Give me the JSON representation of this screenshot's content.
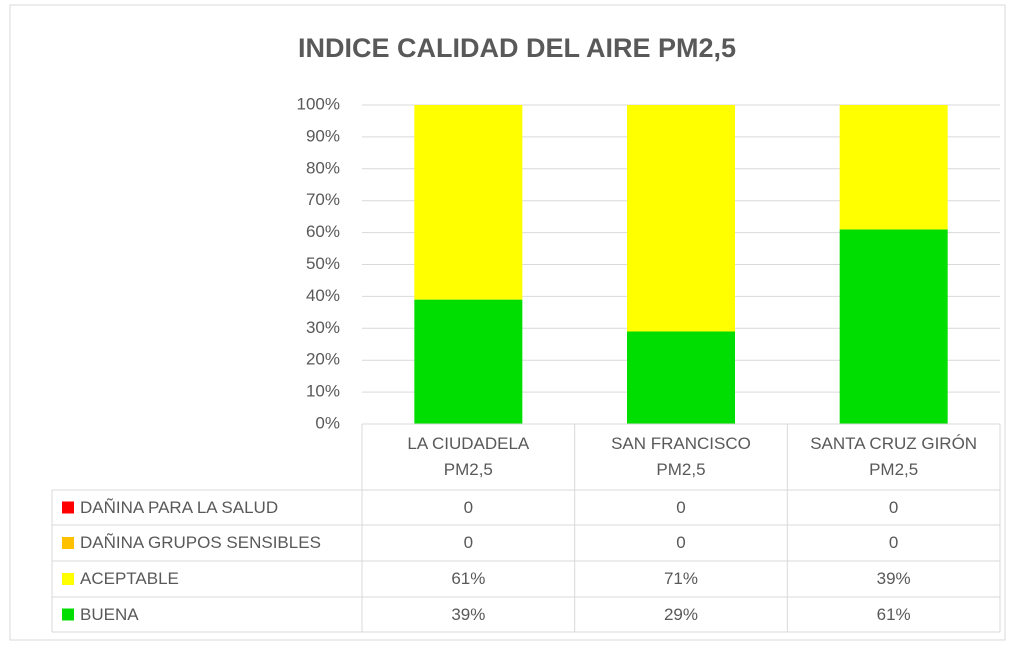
{
  "chart_data": {
    "type": "stacked_bar_100",
    "title": "INDICE CALIDAD DEL AIRE PM2,5",
    "categories": [
      "LA CIUDADELA PM2,5",
      "SAN FRANCISCO PM2,5",
      "SANTA CRUZ GIRÓN PM2,5"
    ],
    "series": [
      {
        "name": "DAÑINA PARA LA SALUD",
        "color": "#ff0000",
        "values": [
          0,
          0,
          0
        ]
      },
      {
        "name": "DAÑINA GRUPOS SENSIBLES",
        "color": "#ffc000",
        "values": [
          0,
          0,
          0
        ]
      },
      {
        "name": "ACEPTABLE",
        "color": "#ffff00",
        "values": [
          61,
          71,
          39
        ],
        "value_labels": [
          "61%",
          "71%",
          "39%"
        ]
      },
      {
        "name": "BUENA",
        "color": "#00dd00",
        "values": [
          39,
          29,
          61
        ],
        "value_labels": [
          "39%",
          "29%",
          "61%"
        ]
      }
    ],
    "ylim": [
      0,
      100
    ],
    "yticks": [
      {
        "value": 0,
        "label": "0%"
      },
      {
        "value": 10,
        "label": "10%"
      },
      {
        "value": 20,
        "label": "20%"
      },
      {
        "value": 30,
        "label": "30%"
      },
      {
        "value": 40,
        "label": "40%"
      },
      {
        "value": 50,
        "label": "50%"
      },
      {
        "value": 60,
        "label": "60%"
      },
      {
        "value": 70,
        "label": "70%"
      },
      {
        "value": 80,
        "label": "80%"
      },
      {
        "value": 90,
        "label": "90%"
      },
      {
        "value": 100,
        "label": "100%"
      }
    ],
    "grid": true
  }
}
